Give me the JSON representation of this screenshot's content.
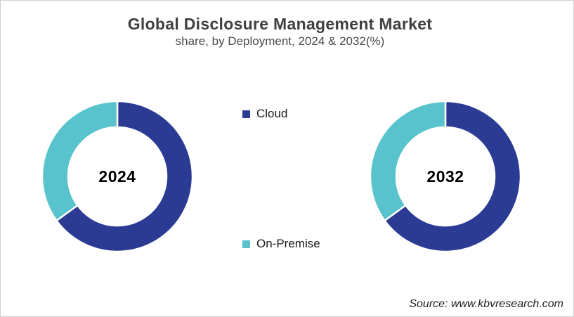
{
  "header": {
    "title": "Global Disclosure Management Market",
    "subtitle": "share, by Deployment, 2024 & 2032(%)"
  },
  "legend": [
    {
      "label": "Cloud",
      "color_key": "cloud"
    },
    {
      "label": "On-Premise",
      "color_key": "on_premise"
    }
  ],
  "colors": {
    "cloud": "#2B3A92",
    "on_premise": "#58C3CC",
    "title_text": "#3F3F3F",
    "border": "#CFCFCF"
  },
  "footer": {
    "source": "Source: www.kbvresearch.com"
  },
  "chart_data": [
    {
      "type": "pie",
      "subtype": "donut",
      "center_label": "2024",
      "categories": [
        "Cloud",
        "On-Premise"
      ],
      "values": [
        65,
        35
      ],
      "unit": "%",
      "colors": [
        "#2B3A92",
        "#58C3CC"
      ],
      "start_angle_deg": 0,
      "direction": "clockwise",
      "inner_radius_ratio": 0.65,
      "data_labels_shown": false,
      "legend_position": "center-between-charts"
    },
    {
      "type": "pie",
      "subtype": "donut",
      "center_label": "2032",
      "categories": [
        "Cloud",
        "On-Premise"
      ],
      "values": [
        65,
        35
      ],
      "unit": "%",
      "colors": [
        "#2B3A92",
        "#58C3CC"
      ],
      "start_angle_deg": 0,
      "direction": "clockwise",
      "inner_radius_ratio": 0.65,
      "data_labels_shown": false,
      "legend_position": "center-between-charts"
    }
  ]
}
